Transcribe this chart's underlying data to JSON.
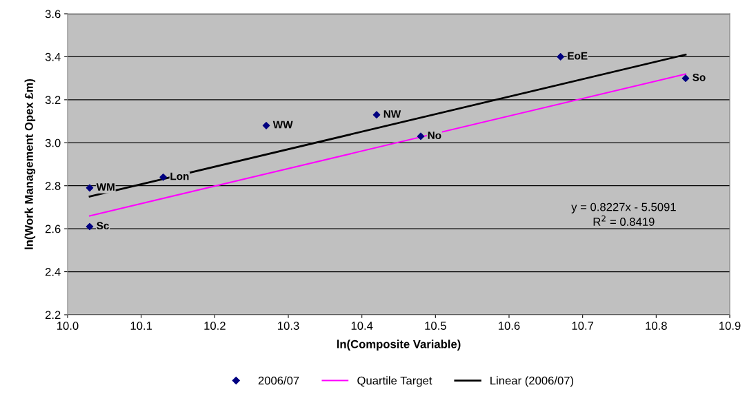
{
  "chart_data": {
    "type": "scatter",
    "xlabel": "ln(Composite Variable)",
    "ylabel": "ln(Work Management Opex £m)",
    "xlim": [
      10.0,
      10.9
    ],
    "xticks": [
      {
        "value": 10.0,
        "label": "10.0"
      },
      10.1,
      10.2,
      10.3,
      10.4,
      10.5,
      10.6,
      10.7,
      10.8,
      10.9
    ],
    "ylim": [
      2.2,
      3.6
    ],
    "yticks": [
      2.2,
      2.4,
      2.6,
      2.8,
      {
        "value": 3.0,
        "label": "3.0"
      },
      3.2,
      3.4,
      3.6
    ],
    "grid": "y",
    "legend": "bottom",
    "series": [
      {
        "name": "2006/07",
        "marker": "diamond",
        "color": "#000080",
        "x": [
          10.03,
          10.03,
          10.13,
          10.27,
          10.42,
          10.48,
          10.67,
          10.84
        ],
        "values": [
          2.79,
          2.61,
          2.84,
          3.08,
          3.13,
          3.03,
          3.4,
          3.3
        ]
      },
      {
        "name": "Quartile Target",
        "type": "line",
        "marker": "none",
        "color": "#ff00ff",
        "x": [
          10.03,
          10.84
        ],
        "values": [
          2.66,
          3.32
        ]
      },
      {
        "name": "Linear (2006/07)",
        "type": "line",
        "marker": "none",
        "color": "#000000",
        "x": [
          10.03,
          10.84
        ],
        "values": [
          2.75,
          3.41
        ]
      }
    ],
    "annotations": [
      {
        "text": "WM",
        "x": 10.03,
        "y": 2.79
      },
      {
        "text": "Sc",
        "x": 10.03,
        "y": 2.61
      },
      {
        "text": "Lon",
        "x": 10.13,
        "y": 2.84
      },
      {
        "text": "WW",
        "x": 10.27,
        "y": 3.08
      },
      {
        "text": "NW",
        "x": 10.42,
        "y": 3.13
      },
      {
        "text": "No",
        "x": 10.48,
        "y": 3.03
      },
      {
        "text": "EoE",
        "x": 10.67,
        "y": 3.4
      },
      {
        "text": "So",
        "x": 10.84,
        "y": 3.3
      },
      "y = 0.8227x - 5.5091\nR$^{2}$ = 0.8419"
    ]
  }
}
